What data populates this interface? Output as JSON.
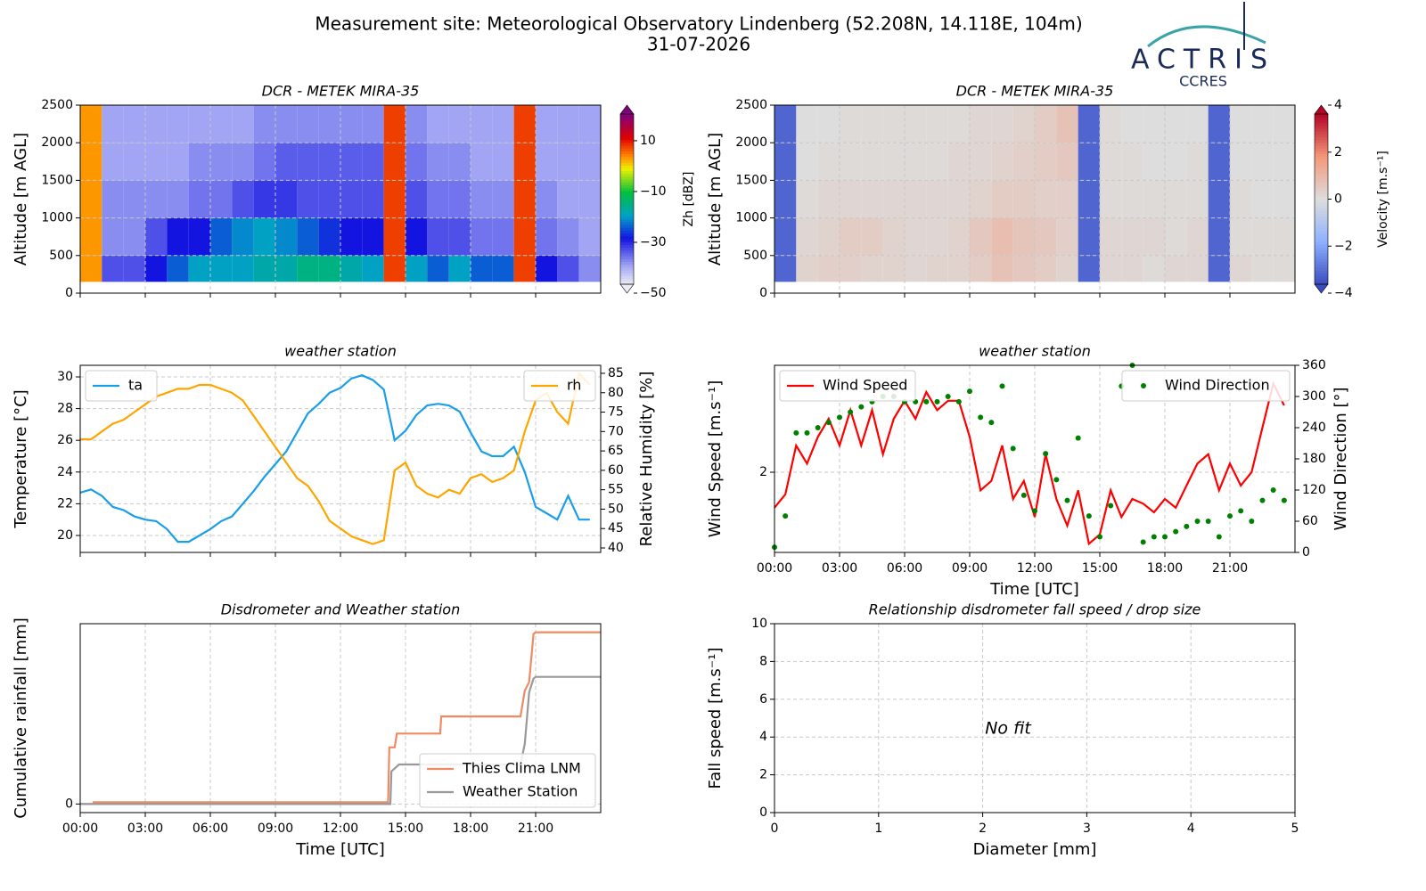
{
  "title": "Measurement site: Meteorological Observatory Lindenberg (52.208N, 14.118E, 104m)",
  "subtitle": "31-07-2026",
  "logo": {
    "name": "ACTRIS",
    "subname": "CCRES"
  },
  "chart_data": [
    {
      "type": "heatmap",
      "title": "DCR - METEK MIRA-35",
      "y_label": "Altitude [m AGL]",
      "xlim": [
        0,
        24
      ],
      "xticks": [
        0,
        3,
        6,
        9,
        12,
        15,
        18,
        21
      ],
      "xtick_labels": false,
      "ylim": [
        0,
        2500
      ],
      "yticks": [
        0,
        500,
        1000,
        1500,
        2000,
        2500
      ],
      "grid": true,
      "x_edges": [
        0,
        1,
        2,
        3,
        4,
        5,
        6,
        7,
        8,
        9,
        10,
        11,
        12,
        13,
        14,
        15,
        16,
        17,
        18,
        19,
        20,
        21,
        22,
        23,
        24
      ],
      "y_edges": [
        150,
        500,
        1000,
        1500,
        2000,
        2500
      ],
      "z": [
        [
          5,
          -35,
          -35,
          -30,
          -25,
          -20,
          -20,
          -20,
          -18,
          -18,
          -15,
          -15,
          -18,
          -20,
          10,
          -20,
          -25,
          -20,
          -25,
          -25,
          10,
          -30,
          -35,
          -40
        ],
        [
          5,
          -40,
          -40,
          -35,
          -30,
          -30,
          -25,
          -22,
          -20,
          -22,
          -25,
          -28,
          -30,
          -30,
          10,
          -30,
          -35,
          -35,
          -38,
          -38,
          10,
          -38,
          -40,
          -42
        ],
        [
          5,
          -40,
          -40,
          -40,
          -40,
          -38,
          -38,
          -35,
          -33,
          -33,
          -35,
          -35,
          -35,
          -35,
          10,
          -35,
          -38,
          -38,
          -40,
          -40,
          10,
          -40,
          -42,
          -42
        ],
        [
          5,
          -42,
          -42,
          -42,
          -42,
          -40,
          -40,
          -40,
          -38,
          -36,
          -36,
          -36,
          -36,
          -36,
          10,
          -38,
          -40,
          -40,
          -42,
          -42,
          10,
          -42,
          -42,
          -42
        ],
        [
          5,
          -42,
          -42,
          -42,
          -42,
          -42,
          -42,
          -42,
          -40,
          -40,
          -40,
          -40,
          -40,
          -40,
          10,
          -40,
          -42,
          -42,
          -42,
          -42,
          10,
          -42,
          -42,
          -42
        ]
      ],
      "colorbar": {
        "label": "Zh [dBZ]",
        "cmap": "zh",
        "clim": [
          -50,
          24
        ],
        "ticks": [
          {
            "value": -50,
            "label": "−50"
          },
          {
            "value": -30,
            "label": "−30"
          },
          {
            "value": -10,
            "label": "−10"
          },
          10
        ]
      }
    },
    {
      "type": "heatmap",
      "title": "DCR - METEK MIRA-35",
      "y_label": "Altitude [m AGL]",
      "xlim": [
        0,
        24
      ],
      "xticks": [
        0,
        3,
        6,
        9,
        12,
        15,
        18,
        21
      ],
      "xtick_labels": false,
      "ylim": [
        0,
        2500
      ],
      "yticks": [
        0,
        500,
        1000,
        1500,
        2000,
        2500
      ],
      "grid": true,
      "x_edges": [
        0,
        1,
        2,
        3,
        4,
        5,
        6,
        7,
        8,
        9,
        10,
        11,
        12,
        13,
        14,
        15,
        16,
        17,
        18,
        19,
        20,
        21,
        22,
        23,
        24
      ],
      "y_edges": [
        150,
        500,
        1000,
        1500,
        2000,
        2500
      ],
      "z": [
        [
          -3.5,
          0.3,
          0.4,
          0.4,
          0.3,
          0.3,
          0.2,
          0.3,
          0.3,
          0.5,
          0.8,
          0.6,
          0.5,
          0.3,
          -3.5,
          0.2,
          0.2,
          0.1,
          0.2,
          0.2,
          -3.5,
          0.2,
          0.1,
          0.1
        ],
        [
          -3.5,
          0.2,
          0.3,
          0.5,
          0.5,
          0.3,
          0.2,
          0.2,
          0.3,
          0.6,
          0.9,
          0.7,
          0.6,
          0.4,
          -3.5,
          0.2,
          0.2,
          0.2,
          0.1,
          0.2,
          -3.5,
          0.1,
          0.1,
          0.1
        ],
        [
          -3.5,
          0.1,
          0.2,
          0.2,
          0.2,
          0.2,
          0.2,
          0.2,
          0.2,
          0.3,
          0.5,
          0.5,
          0.4,
          0.4,
          -3.5,
          0.1,
          0.1,
          0.1,
          0.1,
          0.1,
          -3.5,
          0.1,
          0,
          0
        ],
        [
          -3.5,
          0,
          0.1,
          0.1,
          0.1,
          0.1,
          0.1,
          0.1,
          0.2,
          0.2,
          0.3,
          0.4,
          0.5,
          0.6,
          -3.5,
          0.1,
          0.1,
          0,
          0,
          0.1,
          -3.5,
          0,
          0,
          0
        ],
        [
          -3.5,
          0,
          0,
          0.1,
          0.1,
          0.1,
          0.1,
          0.1,
          0.1,
          0.2,
          0.2,
          0.3,
          0.5,
          0.8,
          -3.5,
          0.1,
          0,
          0,
          0,
          0,
          -3.5,
          0,
          0,
          0
        ]
      ],
      "colorbar": {
        "label": "Velocity [m.s⁻¹]",
        "cmap": "coolwarm",
        "clim": [
          -4,
          4
        ],
        "ticks": [
          {
            "value": -4,
            "label": "−4"
          },
          {
            "value": -2,
            "label": "−2"
          },
          0,
          2,
          4
        ]
      }
    },
    {
      "type": "line",
      "title": "weather station",
      "y_label": "Temperature [°C]",
      "y2_label": "Relative Humidity [%]",
      "xlim": [
        0,
        24
      ],
      "xticks": [
        0,
        3,
        6,
        9,
        12,
        15,
        18,
        21
      ],
      "xtick_labels": false,
      "ylim": [
        18.93,
        30.73
      ],
      "yticks": [
        20,
        22,
        24,
        26,
        28,
        30
      ],
      "y2lim": [
        38.85,
        87.06
      ],
      "y2ticks": [
        40,
        45,
        50,
        55,
        60,
        65,
        70,
        75,
        80,
        85
      ],
      "grid": true,
      "x": [
        0,
        0.5,
        1,
        1.5,
        2,
        2.5,
        3,
        3.5,
        4,
        4.5,
        5,
        5.5,
        6,
        6.5,
        7,
        7.5,
        8,
        8.5,
        9,
        9.5,
        10,
        10.5,
        11,
        11.5,
        12,
        12.5,
        13,
        13.5,
        14,
        14.5,
        15,
        15.5,
        16,
        16.5,
        17,
        17.5,
        18,
        18.5,
        19,
        19.5,
        20,
        20.5,
        21,
        21.5,
        22,
        22.5,
        23,
        23.5
      ],
      "series": [
        {
          "name": "ta",
          "color": "#1a9ee8",
          "legend": "upper left",
          "values": [
            22.7,
            22.9,
            22.5,
            21.8,
            21.6,
            21.2,
            21.0,
            20.9,
            20.4,
            19.6,
            19.6,
            20.0,
            20.4,
            20.9,
            21.2,
            22.0,
            22.8,
            23.7,
            24.5,
            25.3,
            26.5,
            27.7,
            28.3,
            29.0,
            29.3,
            29.9,
            30.1,
            29.8,
            29.2,
            26.0,
            26.6,
            27.6,
            28.2,
            28.3,
            28.2,
            27.8,
            26.5,
            25.3,
            25.0,
            25.0,
            25.6,
            24.0,
            21.8,
            21.4,
            21.0,
            22.5,
            21.0,
            21.0
          ]
        },
        {
          "name": "rh",
          "color": "#ffa500",
          "axis": "y2",
          "legend": "upper right",
          "values": [
            68,
            68,
            70,
            72,
            73,
            75,
            77,
            79,
            80,
            81,
            81,
            82,
            82,
            81,
            80,
            78,
            74,
            70,
            66,
            62,
            58,
            56,
            52,
            47,
            45,
            43,
            42,
            41,
            42,
            60,
            62,
            56,
            54,
            53,
            55,
            54,
            58,
            59,
            57,
            58,
            60,
            70,
            78,
            80,
            75,
            72,
            85,
            82
          ]
        }
      ]
    },
    {
      "type": "line",
      "title": "weather station",
      "x_label": "Time [UTC]",
      "y_label": "Wind Speed [m.s⁻¹]",
      "y2_label": "Wind Direction [°]",
      "xlim": [
        0,
        24
      ],
      "xticks": [
        {
          "value": 0,
          "label": "00:00"
        },
        {
          "value": 3,
          "label": "03:00"
        },
        {
          "value": 6,
          "label": "06:00"
        },
        {
          "value": 9,
          "label": "09:00"
        },
        {
          "value": 12,
          "label": "12:00"
        },
        {
          "value": 15,
          "label": "15:00"
        },
        {
          "value": 18,
          "label": "18:00"
        },
        {
          "value": 21,
          "label": "21:00"
        }
      ],
      "ylim": [
        0.8,
        3.6
      ],
      "yticks": [
        2
      ],
      "y2lim": [
        0,
        360
      ],
      "y2ticks": [
        0,
        60,
        120,
        180,
        240,
        300,
        360
      ],
      "grid": true,
      "x": [
        0,
        0.5,
        1,
        1.5,
        2,
        2.5,
        3,
        3.5,
        4,
        4.5,
        5,
        5.5,
        6,
        6.5,
        7,
        7.5,
        8,
        8.5,
        9,
        9.5,
        10,
        10.5,
        11,
        11.5,
        12,
        12.5,
        13,
        13.5,
        14,
        14.5,
        15,
        15.5,
        16,
        16.5,
        17,
        17.5,
        18,
        18.5,
        19,
        19.5,
        20,
        20.5,
        21,
        21.5,
        22,
        22.5,
        23,
        23.5
      ],
      "series": [
        {
          "name": "Wind Speed",
          "color": "#ff0000",
          "legend": "upper left",
          "values": [
            1.47,
            1.67,
            2.4,
            2.13,
            2.53,
            2.8,
            2.4,
            2.93,
            2.4,
            2.93,
            2.27,
            2.8,
            3.07,
            2.8,
            3.2,
            2.93,
            3.07,
            3.07,
            2.53,
            1.73,
            1.87,
            2.4,
            1.6,
            1.87,
            1.33,
            2.27,
            1.6,
            1.2,
            1.73,
            0.93,
            1.07,
            1.73,
            1.33,
            1.6,
            1.53,
            1.4,
            1.6,
            1.47,
            1.8,
            2.13,
            2.27,
            1.73,
            2.13,
            1.8,
            2.0,
            2.67,
            3.33,
            3.0
          ]
        },
        {
          "name": "Wind Direction",
          "color": "#008000",
          "axis": "y2",
          "mode": "markers",
          "legend": "upper right",
          "values": [
            10,
            70,
            230,
            230,
            240,
            250,
            260,
            270,
            280,
            290,
            300,
            300,
            290,
            290,
            290,
            290,
            300,
            290,
            310,
            260,
            250,
            320,
            200,
            110,
            80,
            190,
            140,
            100,
            220,
            70,
            30,
            90,
            320,
            360,
            20,
            30,
            30,
            40,
            50,
            60,
            60,
            30,
            70,
            80,
            60,
            100,
            120,
            100
          ]
        }
      ]
    },
    {
      "type": "line",
      "title": "Disdrometer and Weather station",
      "x_label": "Time [UTC]",
      "y_label": "Cumulative rainfall [mm]",
      "xlim": [
        0,
        24
      ],
      "xticks": [
        {
          "value": 0,
          "label": "00:00"
        },
        {
          "value": 3,
          "label": "03:00"
        },
        {
          "value": 6,
          "label": "06:00"
        },
        {
          "value": 9,
          "label": "09:00"
        },
        {
          "value": 12,
          "label": "12:00"
        },
        {
          "value": 15,
          "label": "15:00"
        },
        {
          "value": 18,
          "label": "18:00"
        },
        {
          "value": 21,
          "label": "21:00"
        }
      ],
      "ylim": [
        -0.5,
        10.5
      ],
      "yticks": [
        0
      ],
      "grid": true,
      "series": [
        {
          "name": "Thies Clima LNM",
          "color": "#ef8a62",
          "legend": "lower right",
          "x": [
            0,
            0.6,
            0.62,
            14.2,
            14.25,
            14.5,
            14.6,
            16.6,
            16.65,
            20.3,
            20.5,
            20.7,
            20.9,
            21.0,
            24
          ],
          "values": [
            0,
            0,
            0.1,
            0.1,
            3.3,
            3.3,
            4.1,
            4.1,
            5.1,
            5.1,
            6.6,
            7.1,
            9.9,
            10.0,
            10.0
          ]
        },
        {
          "name": "Weather Station",
          "color": "#999999",
          "legend": "lower right",
          "x": [
            0,
            14.3,
            14.35,
            14.7,
            20.3,
            20.5,
            20.7,
            20.9,
            21.0,
            24
          ],
          "values": [
            0,
            0,
            1.9,
            2.3,
            2.3,
            3.5,
            6.5,
            7.3,
            7.4,
            7.4
          ]
        }
      ]
    },
    {
      "type": "scatter",
      "title": "Relationship disdrometer fall speed / drop size",
      "x_label": "Diameter [mm]",
      "y_label": "Fall speed [m.s⁻¹]",
      "xlim": [
        0,
        5
      ],
      "xticks": [
        0,
        1,
        2,
        3,
        4,
        5
      ],
      "ylim": [
        0,
        10
      ],
      "yticks": [
        0,
        2,
        4,
        6,
        8,
        10
      ],
      "grid": true,
      "annotation": "No fit"
    }
  ]
}
